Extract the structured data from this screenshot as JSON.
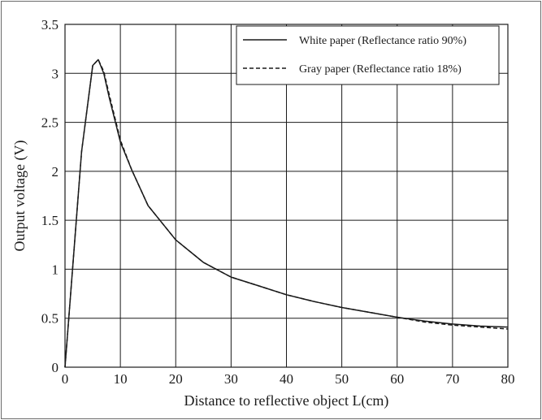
{
  "chart_data": {
    "type": "line",
    "title": "",
    "xlabel": "Distance to reflective object L(cm)",
    "ylabel": "Output voltage (V)",
    "xlim": [
      0,
      80
    ],
    "ylim": [
      0,
      3.5
    ],
    "xticks": [
      0,
      10,
      20,
      30,
      40,
      50,
      60,
      70,
      80
    ],
    "yticks": [
      0,
      0.5,
      1,
      1.5,
      2,
      2.5,
      3,
      3.5
    ],
    "xtick_labels": [
      "0",
      "10",
      "20",
      "30",
      "40",
      "50",
      "60",
      "70",
      "80"
    ],
    "ytick_labels": [
      "0",
      "0.5",
      "1",
      "1.5",
      "2",
      "2.5",
      "3",
      "3.5"
    ],
    "grid": true,
    "legend_position": "top-right",
    "series": [
      {
        "name": "White paper (Reflectance ratio 90%)",
        "style": "solid",
        "color": "#1a1a1a",
        "x": [
          0,
          3,
          5,
          6,
          7,
          8,
          10,
          12,
          15,
          20,
          25,
          30,
          35,
          40,
          45,
          50,
          55,
          60,
          65,
          70,
          75,
          80
        ],
        "y": [
          0,
          2.2,
          3.08,
          3.14,
          3.0,
          2.75,
          2.3,
          2.02,
          1.65,
          1.3,
          1.07,
          0.92,
          0.83,
          0.74,
          0.67,
          0.61,
          0.56,
          0.51,
          0.47,
          0.44,
          0.42,
          0.41
        ]
      },
      {
        "name": "Gray paper (Reflectance ratio 18%)",
        "style": "dashed",
        "color": "#1a1a1a",
        "x": [
          0,
          3,
          5,
          6,
          7,
          8,
          10,
          12,
          15,
          20,
          25,
          30,
          35,
          40,
          45,
          50,
          55,
          60,
          65,
          70,
          75,
          80
        ],
        "y": [
          0,
          2.2,
          3.08,
          3.14,
          3.02,
          2.78,
          2.32,
          2.02,
          1.65,
          1.3,
          1.07,
          0.92,
          0.83,
          0.74,
          0.67,
          0.61,
          0.56,
          0.51,
          0.46,
          0.43,
          0.41,
          0.39
        ]
      }
    ]
  }
}
